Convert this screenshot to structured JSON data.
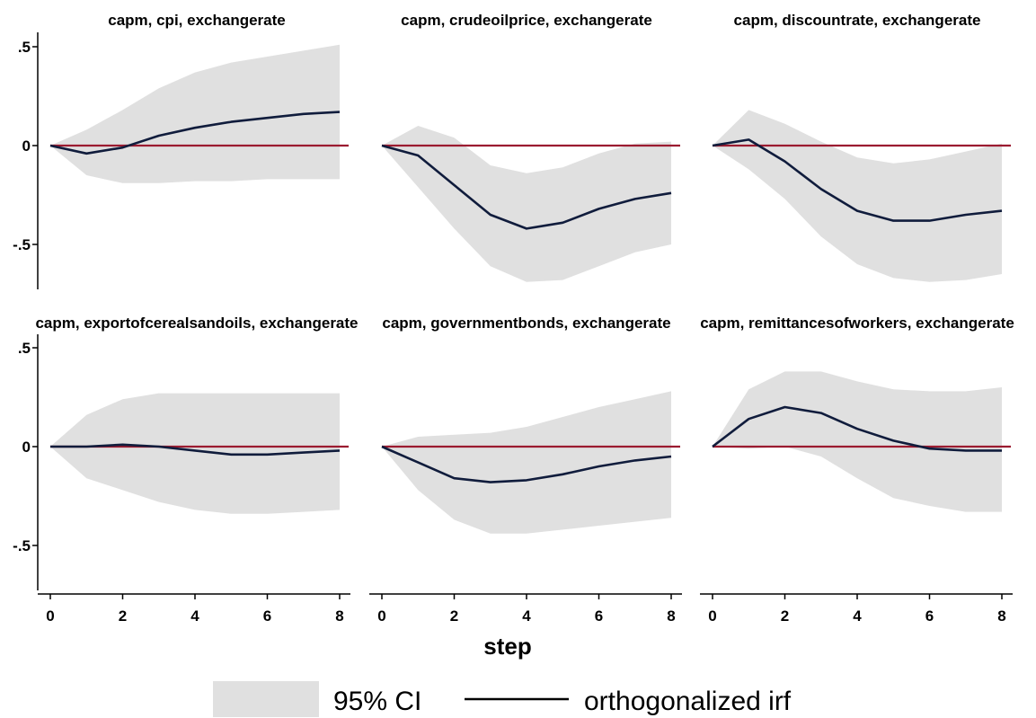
{
  "chart_data": {
    "type": "line",
    "xlabel": "step",
    "ylabel": "",
    "xlim": [
      0,
      8
    ],
    "ylim": [
      -0.72,
      0.55
    ],
    "xticks": [
      0,
      2,
      4,
      6,
      8
    ],
    "xtick_labels": [
      "0",
      "2",
      "4",
      "6",
      "8"
    ],
    "yticks": [
      0.5,
      0,
      -0.5
    ],
    "ytick_labels": [
      ".5",
      "0",
      "-.5"
    ],
    "grid": false,
    "legend": {
      "position": "bottom",
      "entries": [
        {
          "label": "95% CI",
          "kind": "band"
        },
        {
          "label": "orthogonalized irf",
          "kind": "line"
        }
      ]
    },
    "colors": {
      "irf_line": "#101c3c",
      "ci_band": "#e0e0e0",
      "zero_line": "#9b1b30"
    },
    "x": [
      0,
      1,
      2,
      3,
      4,
      5,
      6,
      7,
      8
    ],
    "panels": [
      {
        "title": "capm, cpi, exchangerate",
        "irf": [
          0,
          -0.04,
          -0.01,
          0.05,
          0.09,
          0.12,
          0.14,
          0.16,
          0.17
        ],
        "ci_lower": [
          0,
          -0.15,
          -0.19,
          -0.19,
          -0.18,
          -0.18,
          -0.17,
          -0.17,
          -0.17
        ],
        "ci_upper": [
          0,
          0.08,
          0.18,
          0.29,
          0.37,
          0.42,
          0.45,
          0.48,
          0.51
        ]
      },
      {
        "title": "capm, crudeoilprice, exchangerate",
        "irf": [
          0,
          -0.05,
          -0.2,
          -0.35,
          -0.42,
          -0.39,
          -0.32,
          -0.27,
          -0.24
        ],
        "ci_lower": [
          0,
          -0.21,
          -0.42,
          -0.61,
          -0.69,
          -0.68,
          -0.61,
          -0.54,
          -0.5
        ],
        "ci_upper": [
          0,
          0.1,
          0.04,
          -0.1,
          -0.14,
          -0.11,
          -0.04,
          0.01,
          0.02
        ]
      },
      {
        "title": "capm, discountrate, exchangerate",
        "irf": [
          0,
          0.03,
          -0.08,
          -0.22,
          -0.33,
          -0.38,
          -0.38,
          -0.35,
          -0.33
        ],
        "ci_lower": [
          0,
          -0.12,
          -0.27,
          -0.46,
          -0.6,
          -0.67,
          -0.69,
          -0.68,
          -0.65
        ],
        "ci_upper": [
          0,
          0.18,
          0.11,
          0.02,
          -0.06,
          -0.09,
          -0.07,
          -0.03,
          0.01
        ]
      },
      {
        "title": "capm, exportofcerealsandoils, exchangerate",
        "irf": [
          0,
          0.0,
          0.01,
          0.0,
          -0.02,
          -0.04,
          -0.04,
          -0.03,
          -0.02
        ],
        "ci_lower": [
          0,
          -0.16,
          -0.22,
          -0.28,
          -0.32,
          -0.34,
          -0.34,
          -0.33,
          -0.32
        ],
        "ci_upper": [
          0,
          0.16,
          0.24,
          0.27,
          0.27,
          0.27,
          0.27,
          0.27,
          0.27
        ]
      },
      {
        "title": "capm, governmentbonds, exchangerate",
        "irf": [
          0,
          -0.08,
          -0.16,
          -0.18,
          -0.17,
          -0.14,
          -0.1,
          -0.07,
          -0.05
        ],
        "ci_lower": [
          0,
          -0.22,
          -0.37,
          -0.44,
          -0.44,
          -0.42,
          -0.4,
          -0.38,
          -0.36
        ],
        "ci_upper": [
          0,
          0.05,
          0.06,
          0.07,
          0.1,
          0.15,
          0.2,
          0.24,
          0.28
        ]
      },
      {
        "title": "capm, remittancesofworkers, exchangerate",
        "irf": [
          0,
          0.14,
          0.2,
          0.17,
          0.09,
          0.03,
          -0.01,
          -0.02,
          -0.02
        ],
        "ci_lower": [
          0,
          -0.01,
          0.0,
          -0.05,
          -0.16,
          -0.26,
          -0.3,
          -0.33,
          -0.33
        ],
        "ci_upper": [
          0,
          0.29,
          0.38,
          0.38,
          0.33,
          0.29,
          0.28,
          0.28,
          0.3
        ]
      }
    ]
  }
}
